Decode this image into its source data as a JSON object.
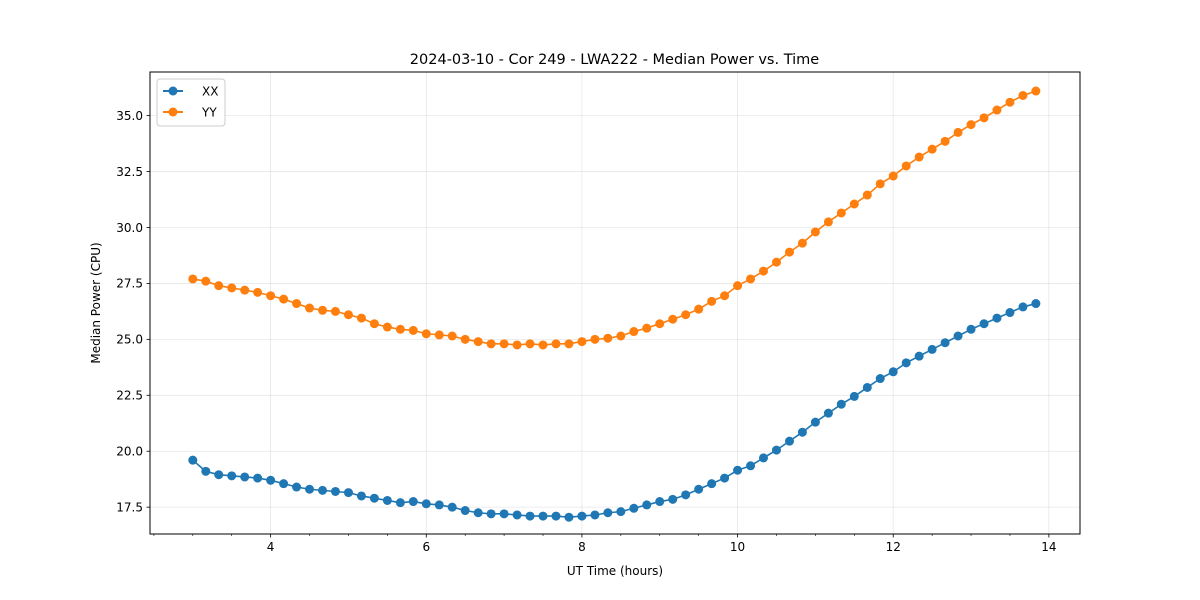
{
  "chart_data": {
    "type": "line",
    "title": "2024-03-10 - Cor 249 - LWA222 - Median Power vs. Time",
    "xlabel": "UT Time (hours)",
    "ylabel": "Median Power (CPU)",
    "xlim": [
      2.45,
      14.4
    ],
    "ylim": [
      16.3,
      36.95
    ],
    "xticks": [
      4,
      6,
      8,
      10,
      12,
      14
    ],
    "yticks": [
      17.5,
      20.0,
      22.5,
      25.0,
      27.5,
      30.0,
      32.5,
      35.0
    ],
    "grid": true,
    "legend_position": "top-left",
    "x": [
      3.0,
      3.167,
      3.333,
      3.5,
      3.667,
      3.833,
      4.0,
      4.167,
      4.333,
      4.5,
      4.667,
      4.833,
      5.0,
      5.167,
      5.333,
      5.5,
      5.667,
      5.833,
      6.0,
      6.167,
      6.333,
      6.5,
      6.667,
      6.833,
      7.0,
      7.167,
      7.333,
      7.5,
      7.667,
      7.833,
      8.0,
      8.167,
      8.333,
      8.5,
      8.667,
      8.833,
      9.0,
      9.167,
      9.333,
      9.5,
      9.667,
      9.833,
      10.0,
      10.167,
      10.333,
      10.5,
      10.667,
      10.833,
      11.0,
      11.167,
      11.333,
      11.5,
      11.667,
      11.833,
      12.0,
      12.167,
      12.333,
      12.5,
      12.667,
      12.833,
      13.0,
      13.167,
      13.333,
      13.5,
      13.667,
      13.833
    ],
    "series": [
      {
        "name": "XX",
        "color": "#1f77b4",
        "values": [
          19.6,
          19.1,
          18.95,
          18.9,
          18.85,
          18.8,
          18.7,
          18.55,
          18.4,
          18.3,
          18.25,
          18.2,
          18.15,
          18.0,
          17.9,
          17.8,
          17.7,
          17.75,
          17.65,
          17.6,
          17.5,
          17.35,
          17.25,
          17.2,
          17.2,
          17.15,
          17.1,
          17.1,
          17.1,
          17.05,
          17.1,
          17.15,
          17.25,
          17.3,
          17.45,
          17.6,
          17.75,
          17.85,
          18.05,
          18.3,
          18.55,
          18.8,
          19.15,
          19.35,
          19.7,
          20.05,
          20.45,
          20.85,
          21.3,
          21.7,
          22.1,
          22.45,
          22.85,
          23.25,
          23.55,
          23.95,
          24.25,
          24.55,
          24.85,
          25.15,
          25.45,
          25.7,
          25.95,
          26.2,
          26.45,
          26.6
        ]
      },
      {
        "name": "YY",
        "color": "#ff7f0e",
        "values": [
          27.7,
          27.6,
          27.4,
          27.3,
          27.2,
          27.1,
          26.95,
          26.8,
          26.6,
          26.4,
          26.3,
          26.25,
          26.1,
          25.95,
          25.7,
          25.55,
          25.45,
          25.4,
          25.25,
          25.2,
          25.15,
          25.0,
          24.9,
          24.8,
          24.8,
          24.75,
          24.8,
          24.75,
          24.8,
          24.8,
          24.9,
          25.0,
          25.05,
          25.15,
          25.35,
          25.5,
          25.7,
          25.9,
          26.1,
          26.35,
          26.7,
          26.95,
          27.4,
          27.7,
          28.05,
          28.45,
          28.9,
          29.3,
          29.8,
          30.25,
          30.65,
          31.05,
          31.45,
          31.95,
          32.3,
          32.75,
          33.15,
          33.5,
          33.85,
          34.25,
          34.6,
          34.9,
          35.25,
          35.6,
          35.9,
          36.1
        ]
      }
    ]
  }
}
